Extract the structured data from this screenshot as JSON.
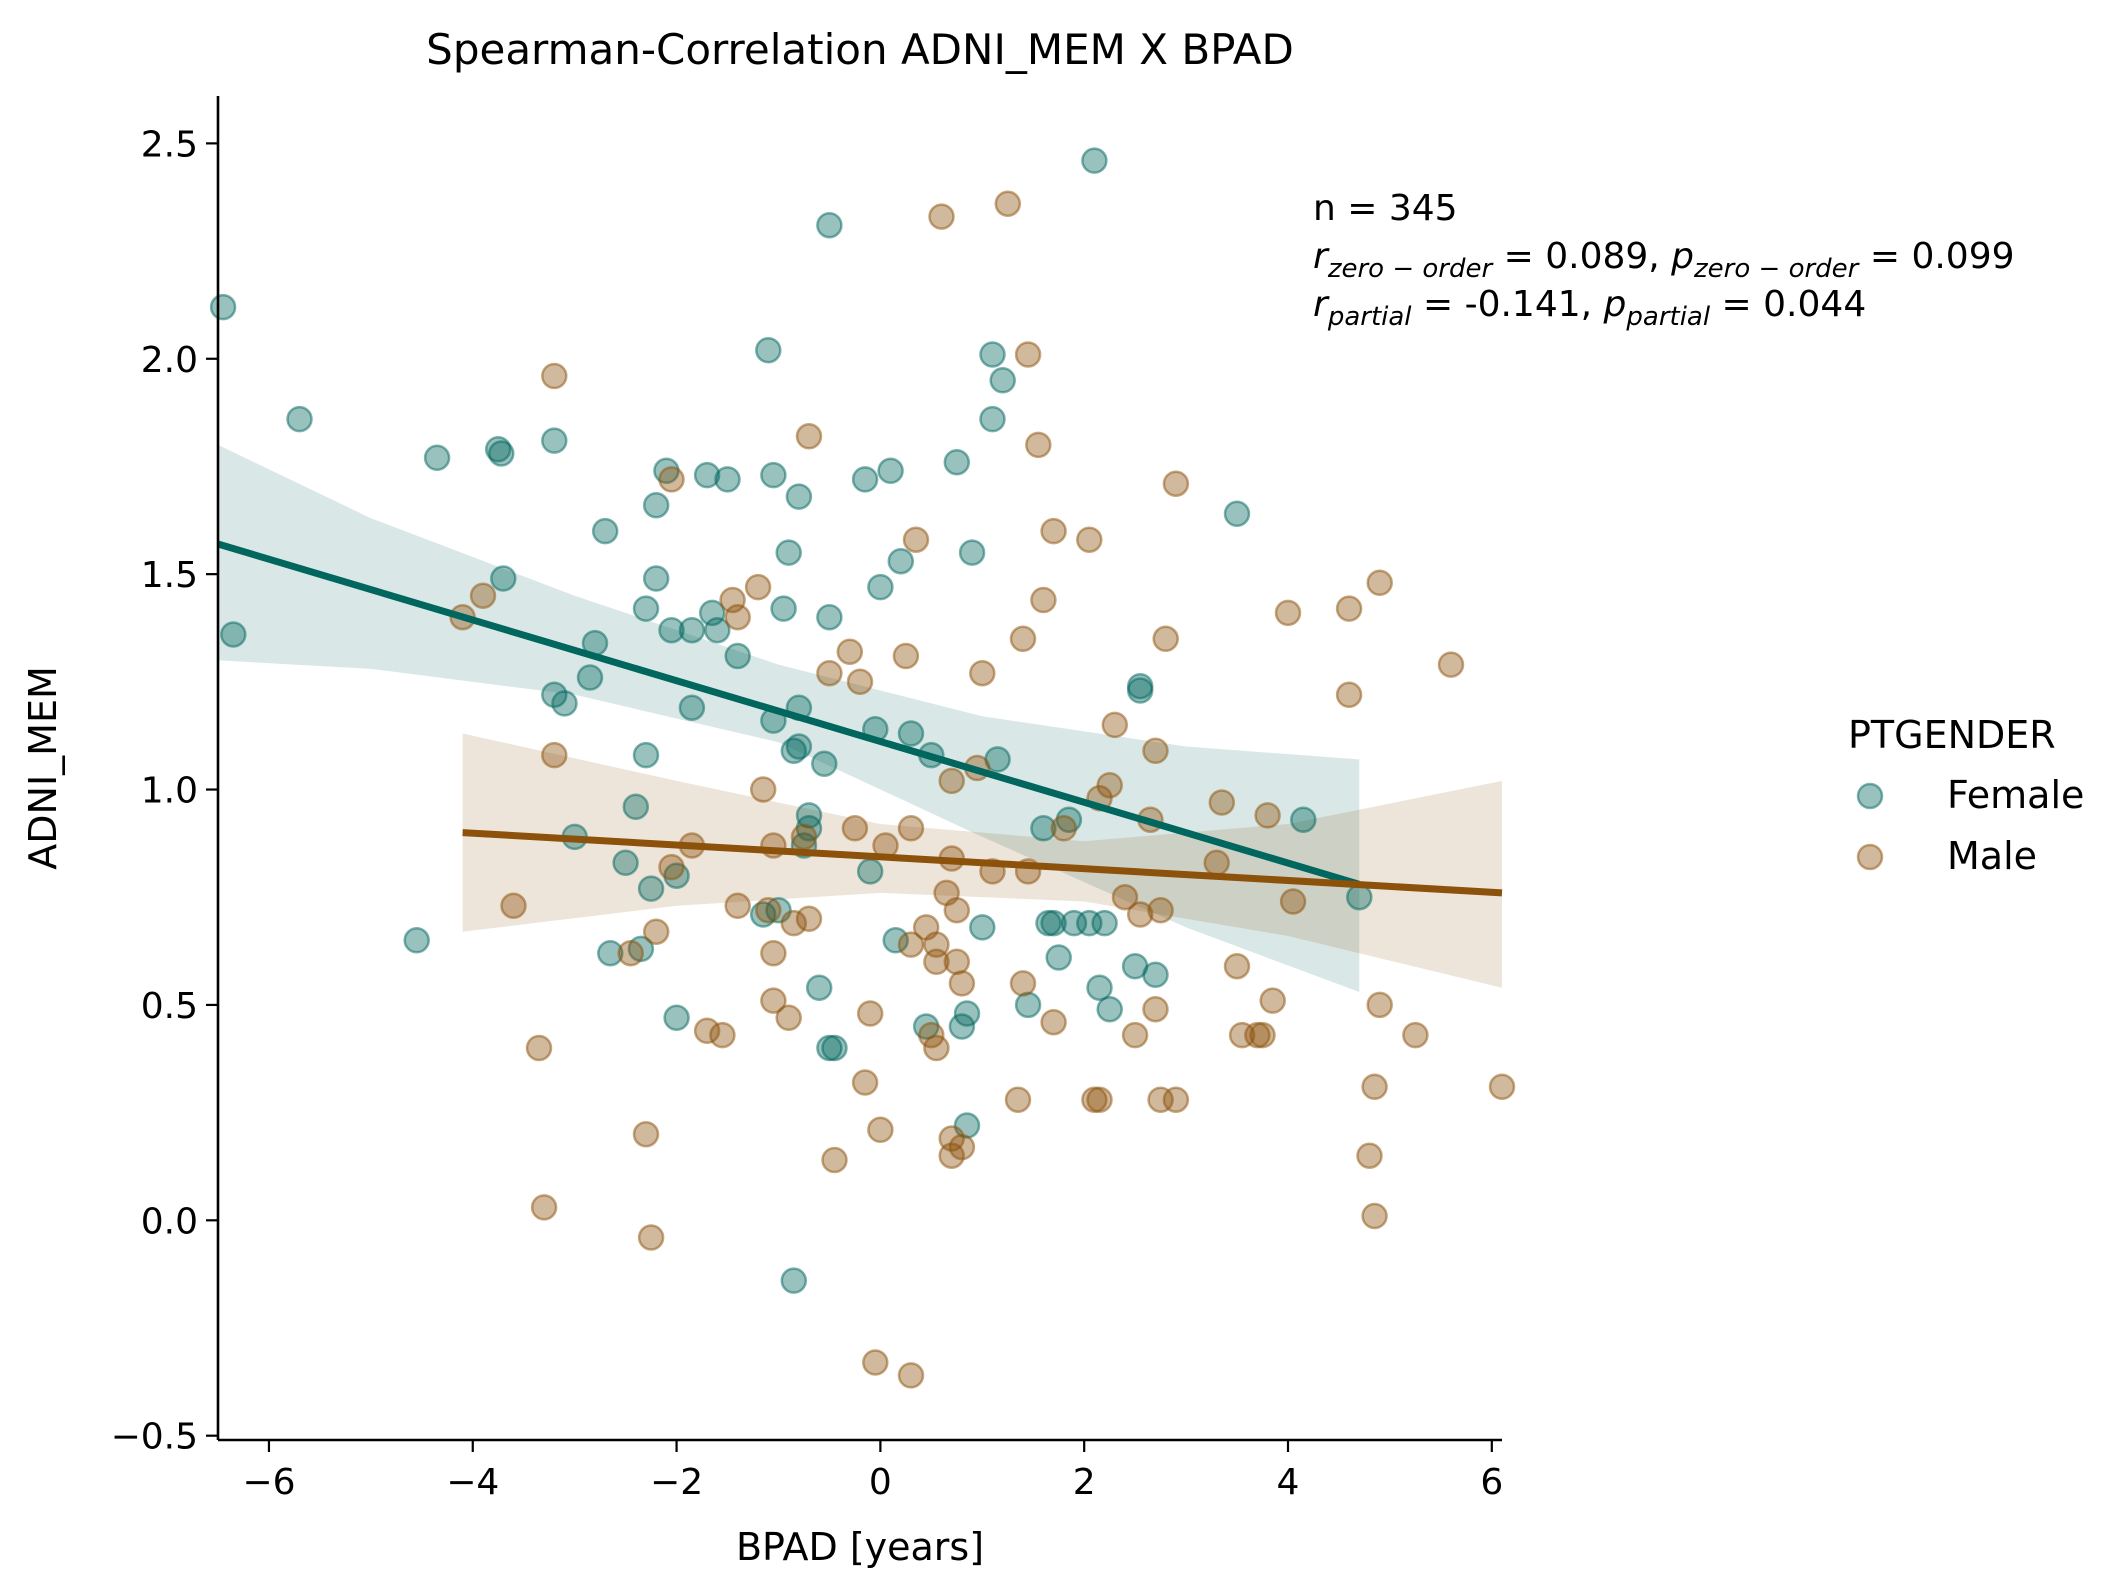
{
  "chart_data": {
    "type": "scatter",
    "title": "Spearman-Correlation ADNI_MEM X BPAD",
    "xlabel": "BPAD [years]",
    "ylabel": "ADNI_MEM",
    "xlim": [
      -6.5,
      6.1
    ],
    "ylim": [
      -0.51,
      2.61
    ],
    "x_ticks": [
      -6,
      -4,
      -2,
      0,
      2,
      4,
      6
    ],
    "y_ticks": [
      -0.5,
      0.0,
      0.5,
      1.0,
      1.5,
      2.0,
      2.5
    ],
    "x_tick_labels": [
      "−6",
      "−4",
      "−2",
      "0",
      "2",
      "4",
      "6"
    ],
    "y_tick_labels": [
      "−0.5",
      "0.0",
      "0.5",
      "1.0",
      "1.5",
      "2.0",
      "2.5"
    ],
    "grid": false,
    "legend": {
      "title": "PTGENDER",
      "position": "right"
    },
    "annotation": {
      "n_line": "n = 345",
      "zero_order": {
        "r_sym": "r",
        "p_sym": "p",
        "sub": "zero − order",
        "r_value": "0.089",
        "p_value": "0.099"
      },
      "partial": {
        "r_sym": "r",
        "p_sym": "p",
        "sub": "partial",
        "r_value": "-0.141",
        "p_value": "0.044"
      }
    },
    "series": [
      {
        "name": "Female",
        "color": "#01665e",
        "fit": {
          "x": [
            -6.5,
            4.7
          ],
          "y": [
            1.57,
            0.78
          ]
        },
        "ci": {
          "x": [
            -6.5,
            -5.0,
            -3.0,
            -1.0,
            1.0,
            3.0,
            4.7
          ],
          "upper": [
            1.8,
            1.63,
            1.45,
            1.29,
            1.17,
            1.1,
            1.07
          ],
          "lower": [
            1.3,
            1.28,
            1.22,
            1.11,
            0.89,
            0.68,
            0.53
          ]
        },
        "points": [
          [
            -6.45,
            2.12
          ],
          [
            -6.35,
            1.36
          ],
          [
            -5.7,
            1.86
          ],
          [
            -4.55,
            0.65
          ],
          [
            -4.35,
            1.77
          ],
          [
            -3.75,
            1.79
          ],
          [
            -3.72,
            1.78
          ],
          [
            -3.7,
            1.49
          ],
          [
            -3.2,
            1.81
          ],
          [
            -3.2,
            1.22
          ],
          [
            -3.1,
            1.2
          ],
          [
            -3.0,
            0.89
          ],
          [
            -2.85,
            1.26
          ],
          [
            -2.8,
            1.34
          ],
          [
            -2.7,
            1.6
          ],
          [
            -2.65,
            0.62
          ],
          [
            -2.5,
            0.83
          ],
          [
            -2.4,
            0.96
          ],
          [
            -2.35,
            0.63
          ],
          [
            -2.3,
            1.08
          ],
          [
            -2.3,
            1.42
          ],
          [
            -2.25,
            0.77
          ],
          [
            -2.2,
            1.49
          ],
          [
            -2.2,
            1.66
          ],
          [
            -2.1,
            1.74
          ],
          [
            -2.05,
            1.37
          ],
          [
            -2.0,
            0.47
          ],
          [
            -2.0,
            0.8
          ],
          [
            -1.85,
            1.19
          ],
          [
            -1.85,
            1.37
          ],
          [
            -1.7,
            1.73
          ],
          [
            -1.65,
            1.41
          ],
          [
            -1.6,
            1.37
          ],
          [
            -1.5,
            1.72
          ],
          [
            -1.4,
            1.31
          ],
          [
            -1.15,
            0.71
          ],
          [
            -1.1,
            2.02
          ],
          [
            -1.05,
            1.73
          ],
          [
            -1.05,
            1.16
          ],
          [
            -1.0,
            0.72
          ],
          [
            -0.95,
            1.42
          ],
          [
            -0.9,
            1.55
          ],
          [
            -0.85,
            1.09
          ],
          [
            -0.85,
            -0.14
          ],
          [
            -0.8,
            1.19
          ],
          [
            -0.8,
            1.1
          ],
          [
            -0.8,
            1.68
          ],
          [
            -0.75,
            0.87
          ],
          [
            -0.7,
            0.91
          ],
          [
            -0.7,
            0.94
          ],
          [
            -0.6,
            0.54
          ],
          [
            -0.55,
            1.06
          ],
          [
            -0.5,
            2.31
          ],
          [
            -0.5,
            1.4
          ],
          [
            -0.5,
            0.4
          ],
          [
            -0.45,
            0.4
          ],
          [
            -0.15,
            1.72
          ],
          [
            -0.1,
            0.81
          ],
          [
            -0.05,
            1.14
          ],
          [
            0.0,
            1.47
          ],
          [
            0.1,
            1.74
          ],
          [
            0.15,
            0.65
          ],
          [
            0.2,
            1.53
          ],
          [
            0.3,
            1.13
          ],
          [
            0.45,
            0.45
          ],
          [
            0.5,
            1.08
          ],
          [
            0.75,
            1.76
          ],
          [
            0.8,
            0.45
          ],
          [
            0.85,
            0.48
          ],
          [
            0.85,
            0.22
          ],
          [
            0.9,
            1.55
          ],
          [
            1.0,
            0.68
          ],
          [
            1.1,
            2.01
          ],
          [
            1.1,
            1.86
          ],
          [
            1.15,
            1.07
          ],
          [
            1.2,
            1.95
          ],
          [
            1.45,
            0.5
          ],
          [
            1.6,
            0.91
          ],
          [
            1.65,
            0.69
          ],
          [
            1.7,
            0.69
          ],
          [
            1.75,
            0.61
          ],
          [
            1.85,
            0.93
          ],
          [
            1.9,
            0.69
          ],
          [
            2.05,
            0.69
          ],
          [
            2.1,
            2.46
          ],
          [
            2.15,
            0.54
          ],
          [
            2.2,
            0.69
          ],
          [
            2.25,
            0.49
          ],
          [
            2.5,
            0.59
          ],
          [
            2.55,
            1.23
          ],
          [
            2.55,
            1.24
          ],
          [
            2.7,
            0.57
          ],
          [
            3.5,
            1.64
          ],
          [
            4.15,
            0.93
          ],
          [
            4.7,
            0.75
          ]
        ]
      },
      {
        "name": "Male",
        "color": "#8c510a",
        "fit": {
          "x": [
            -4.1,
            6.1
          ],
          "y": [
            0.9,
            0.76
          ]
        },
        "ci": {
          "x": [
            -4.1,
            -2.0,
            0.0,
            2.0,
            4.0,
            6.1
          ],
          "upper": [
            1.13,
            1.02,
            0.92,
            0.88,
            0.92,
            1.02
          ],
          "lower": [
            0.67,
            0.73,
            0.76,
            0.74,
            0.66,
            0.54
          ]
        },
        "points": [
          [
            -4.1,
            1.4
          ],
          [
            -3.9,
            1.45
          ],
          [
            -3.6,
            0.73
          ],
          [
            -3.35,
            0.4
          ],
          [
            -3.3,
            0.03
          ],
          [
            -3.2,
            1.96
          ],
          [
            -3.2,
            1.08
          ],
          [
            -2.45,
            0.62
          ],
          [
            -2.3,
            0.2
          ],
          [
            -2.25,
            -0.04
          ],
          [
            -2.2,
            0.67
          ],
          [
            -2.05,
            0.82
          ],
          [
            -2.05,
            1.72
          ],
          [
            -1.85,
            0.87
          ],
          [
            -1.7,
            0.44
          ],
          [
            -1.55,
            0.43
          ],
          [
            -1.45,
            1.44
          ],
          [
            -1.4,
            1.4
          ],
          [
            -1.4,
            0.73
          ],
          [
            -1.2,
            1.47
          ],
          [
            -1.15,
            1.0
          ],
          [
            -1.1,
            0.72
          ],
          [
            -1.05,
            0.87
          ],
          [
            -1.05,
            0.62
          ],
          [
            -1.05,
            0.51
          ],
          [
            -0.9,
            0.47
          ],
          [
            -0.85,
            0.69
          ],
          [
            -0.75,
            0.89
          ],
          [
            -0.7,
            1.82
          ],
          [
            -0.7,
            0.7
          ],
          [
            -0.5,
            1.27
          ],
          [
            -0.45,
            0.14
          ],
          [
            -0.3,
            1.32
          ],
          [
            -0.25,
            0.91
          ],
          [
            -0.2,
            1.25
          ],
          [
            -0.15,
            0.32
          ],
          [
            -0.1,
            0.48
          ],
          [
            -0.05,
            -0.33
          ],
          [
            0.0,
            0.21
          ],
          [
            0.05,
            0.87
          ],
          [
            0.25,
            1.31
          ],
          [
            0.3,
            0.64
          ],
          [
            0.3,
            0.91
          ],
          [
            0.3,
            -0.36
          ],
          [
            0.35,
            1.58
          ],
          [
            0.45,
            0.68
          ],
          [
            0.5,
            0.43
          ],
          [
            0.55,
            0.64
          ],
          [
            0.55,
            0.6
          ],
          [
            0.55,
            0.4
          ],
          [
            0.6,
            2.33
          ],
          [
            0.65,
            0.76
          ],
          [
            0.7,
            0.84
          ],
          [
            0.7,
            1.02
          ],
          [
            0.7,
            0.19
          ],
          [
            0.7,
            0.15
          ],
          [
            0.75,
            0.72
          ],
          [
            0.75,
            0.6
          ],
          [
            0.8,
            0.55
          ],
          [
            0.8,
            0.17
          ],
          [
            0.95,
            1.05
          ],
          [
            1.0,
            1.27
          ],
          [
            1.1,
            0.81
          ],
          [
            1.25,
            2.36
          ],
          [
            1.35,
            0.28
          ],
          [
            1.4,
            0.55
          ],
          [
            1.4,
            1.35
          ],
          [
            1.45,
            0.81
          ],
          [
            1.45,
            2.01
          ],
          [
            1.55,
            1.8
          ],
          [
            1.6,
            1.44
          ],
          [
            1.7,
            0.46
          ],
          [
            1.7,
            1.6
          ],
          [
            1.8,
            0.91
          ],
          [
            2.05,
            1.58
          ],
          [
            2.1,
            0.28
          ],
          [
            2.15,
            0.28
          ],
          [
            2.15,
            0.98
          ],
          [
            2.25,
            1.01
          ],
          [
            2.3,
            1.15
          ],
          [
            2.4,
            0.75
          ],
          [
            2.5,
            0.43
          ],
          [
            2.55,
            0.71
          ],
          [
            2.65,
            0.93
          ],
          [
            2.7,
            0.49
          ],
          [
            2.7,
            1.09
          ],
          [
            2.75,
            0.28
          ],
          [
            2.75,
            0.72
          ],
          [
            2.8,
            1.35
          ],
          [
            2.9,
            1.71
          ],
          [
            2.9,
            0.28
          ],
          [
            3.3,
            0.83
          ],
          [
            3.35,
            0.97
          ],
          [
            3.5,
            0.59
          ],
          [
            3.55,
            0.43
          ],
          [
            3.7,
            0.43
          ],
          [
            3.75,
            0.43
          ],
          [
            3.8,
            0.94
          ],
          [
            3.85,
            0.51
          ],
          [
            4.0,
            1.41
          ],
          [
            4.05,
            0.74
          ],
          [
            4.6,
            1.42
          ],
          [
            4.6,
            1.22
          ],
          [
            4.8,
            0.15
          ],
          [
            4.85,
            0.31
          ],
          [
            4.85,
            0.01
          ],
          [
            4.9,
            1.48
          ],
          [
            4.9,
            0.5
          ],
          [
            5.25,
            0.43
          ],
          [
            5.6,
            1.29
          ],
          [
            6.1,
            0.31
          ]
        ]
      }
    ]
  }
}
